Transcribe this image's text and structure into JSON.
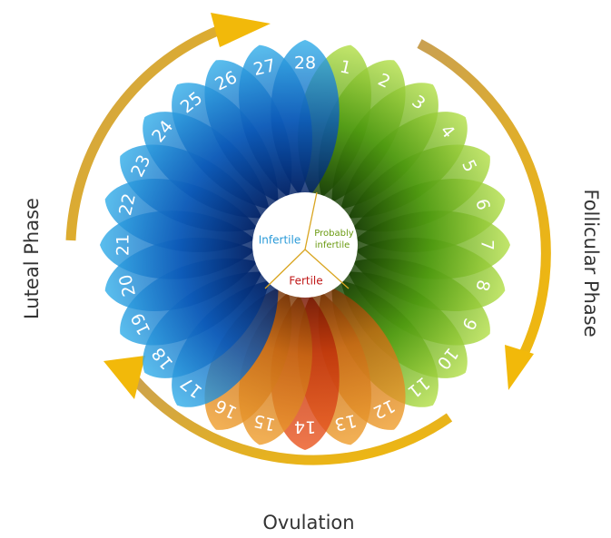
{
  "petals": [
    "1",
    "2",
    "3",
    "4",
    "5",
    "6",
    "7",
    "8",
    "9",
    "10",
    "11",
    "12",
    "13",
    "14",
    "15",
    "16",
    "17",
    "18",
    "19",
    "20",
    "21",
    "22",
    "23",
    "24",
    "25",
    "26",
    "27",
    "28"
  ],
  "center_labels": {
    "infertile": "Infertile",
    "probably_infertile": [
      "Probably",
      "infertile"
    ],
    "fertile": "Fertile"
  },
  "phases": {
    "luteal": "Luteal Phase",
    "follicular": "Follicular Phase",
    "ovulation": "Ovulation"
  }
}
